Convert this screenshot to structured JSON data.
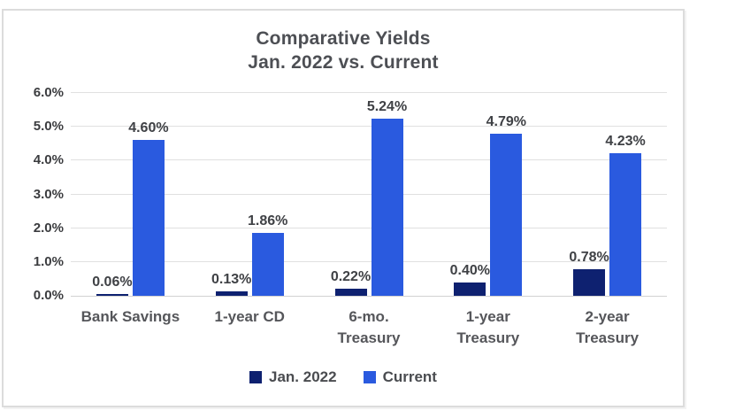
{
  "page": {
    "background_color": "#ffffff",
    "card_border_color": "#dcdcdc"
  },
  "chart_data": {
    "type": "bar",
    "title": "Comparative Yields",
    "subtitle": "Jan. 2022 vs. Current",
    "categories": [
      "Bank Savings",
      "1-year CD",
      "6-mo.\nTreasury",
      "1-year\nTreasury",
      "2-year\nTreasury"
    ],
    "series": [
      {
        "name": "Jan. 2022",
        "color": "#0e2170",
        "values": [
          0.06,
          0.13,
          0.22,
          0.4,
          0.78
        ],
        "labels": [
          "0.06%",
          "0.13%",
          "0.22%",
          "0.40%",
          "0.78%"
        ]
      },
      {
        "name": "Current",
        "color": "#2a5adf",
        "values": [
          4.6,
          1.86,
          5.24,
          4.79,
          4.23
        ],
        "labels": [
          "4.60%",
          "1.86%",
          "5.24%",
          "4.79%",
          "4.23%"
        ]
      }
    ],
    "y_axis": {
      "min": 0,
      "max": 6,
      "step": 1,
      "tick_labels": [
        "0.0%",
        "1.0%",
        "2.0%",
        "3.0%",
        "4.0%",
        "5.0%",
        "6.0%"
      ]
    },
    "grid": true,
    "legend_position": "bottom",
    "data_labels_shown": true
  }
}
